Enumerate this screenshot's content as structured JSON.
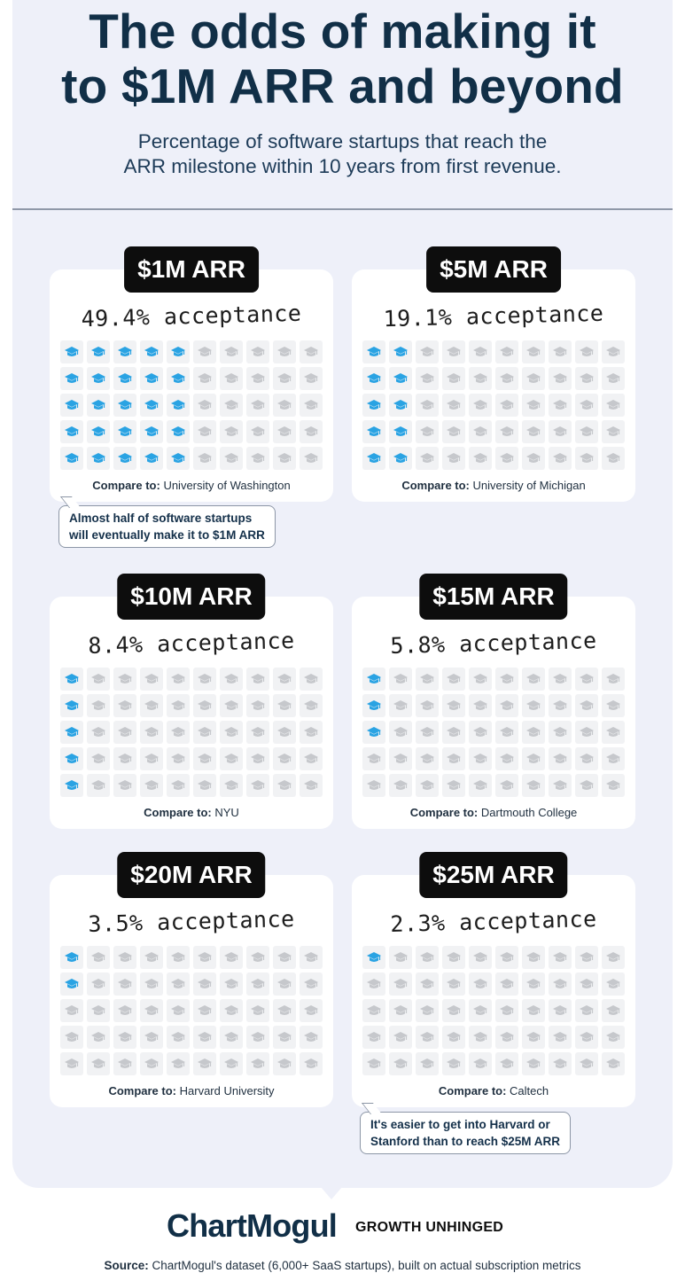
{
  "header": {
    "title_line1": "The odds of making it",
    "title_line2": "to $1M ARR and beyond",
    "subtitle_line1": "Percentage of software startups that reach the",
    "subtitle_line2": "ARR milestone within 10 years from first revenue."
  },
  "colors": {
    "filled_icon": "#2aa3e3",
    "empty_icon": "#c6c8cc",
    "badge_bg": "#0d0d0d",
    "title": "#112f47"
  },
  "icon_name": "graduation-cap-icon",
  "compare_prefix": "Compare to:",
  "acceptance_suffix": "acceptance",
  "chart_data": {
    "type": "pictogram",
    "grid": {
      "rows": 5,
      "cols": 10,
      "fill_direction": "column-first"
    },
    "series": [
      {
        "milestone": "$1M ARR",
        "percent": 49.4,
        "label": "49.4%",
        "filled_icons": 25,
        "compare": "University of Washington"
      },
      {
        "milestone": "$5M ARR",
        "percent": 19.1,
        "label": "19.1%",
        "filled_icons": 10,
        "compare": "University of Michigan"
      },
      {
        "milestone": "$10M ARR",
        "percent": 8.4,
        "label": "8.4%",
        "filled_icons": 5,
        "compare": "NYU"
      },
      {
        "milestone": "$15M ARR",
        "percent": 5.8,
        "label": "5.8%",
        "filled_icons": 3,
        "compare": "Dartmouth College"
      },
      {
        "milestone": "$20M ARR",
        "percent": 3.5,
        "label": "3.5%",
        "filled_icons": 2,
        "compare": "Harvard University"
      },
      {
        "milestone": "$25M ARR",
        "percent": 2.3,
        "label": "2.3%",
        "filled_icons": 1,
        "compare": "Caltech"
      }
    ]
  },
  "callouts": {
    "first_line1": "Almost half of software startups",
    "first_line2": "will eventually make it to $1M ARR",
    "second_line1": "It's easier to get into Harvard or",
    "second_line2": "Stanford than to reach $25M ARR"
  },
  "footer": {
    "brand": "ChartMogul",
    "tagline": "GROWTH UNHINGED",
    "source_label": "Source:",
    "source_text": "ChartMogul's dataset (6,000+ SaaS startups), built on actual subscription metrics"
  }
}
